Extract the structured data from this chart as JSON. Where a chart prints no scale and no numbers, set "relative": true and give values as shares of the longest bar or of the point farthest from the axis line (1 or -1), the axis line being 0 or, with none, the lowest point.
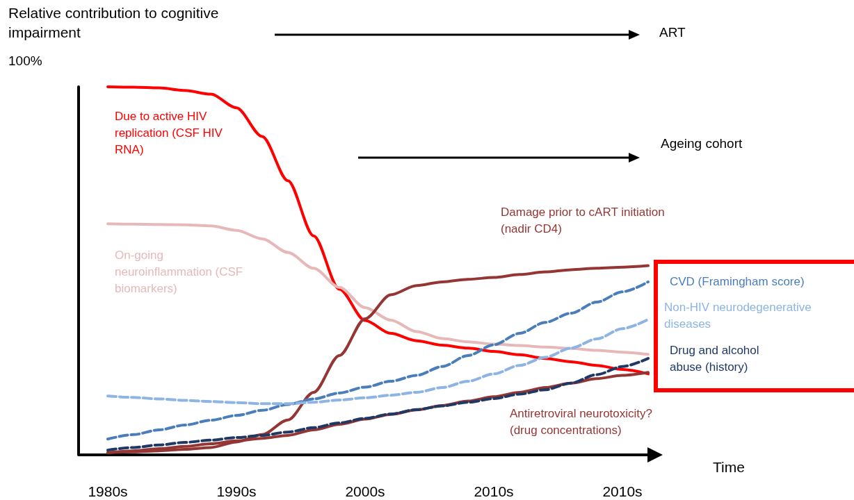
{
  "chart_data": {
    "type": "line",
    "relative": true,
    "ylabel": "Relative contribution to cognitive impairment",
    "xlabel": "Time",
    "legend": false,
    "grid": false,
    "marker": "none",
    "categories": [
      "1980s",
      null,
      null,
      null,
      null,
      "1990s",
      null,
      null,
      null,
      null,
      "2000s",
      null,
      null,
      null,
      null,
      "2010s",
      null,
      null,
      null,
      null,
      "2010s",
      null
    ],
    "annotations": [
      "100%",
      "ART",
      "Ageing cohort"
    ],
    "series": [
      {
        "name": "Due to active HIV replication (CSF HIV RNA)",
        "color": "#ff0000",
        "line_style": "solid",
        "values": [
          1,
          0.999,
          0.997,
          0.99,
          0.98,
          0.943,
          0.865,
          0.745,
          0.595,
          0.45,
          0.365,
          0.33,
          0.31,
          0.298,
          0.29,
          0.281,
          0.272,
          0.262,
          0.253,
          0.243,
          0.232,
          0.22
        ]
      },
      {
        "name": "On-going neuroinflammation (CSF biomarkers)",
        "color": "#e6b9b8",
        "line_style": "solid",
        "values": [
          0.628,
          0.627,
          0.626,
          0.625,
          0.622,
          0.61,
          0.587,
          0.55,
          0.507,
          0.455,
          0.4,
          0.366,
          0.335,
          0.316,
          0.307,
          0.301,
          0.297,
          0.293,
          0.289,
          0.284,
          0.279,
          0.273
        ]
      },
      {
        "name": "Damage prior to cART initiation (nadir CD4)",
        "color": "#943634",
        "line_style": "solid",
        "values": [
          0.006,
          0.008,
          0.011,
          0.015,
          0.02,
          0.035,
          0.055,
          0.095,
          0.17,
          0.27,
          0.37,
          0.435,
          0.46,
          0.47,
          0.477,
          0.482,
          0.49,
          0.497,
          0.503,
          0.507,
          0.51,
          0.514
        ]
      },
      {
        "name": "Antiretroviral neurotoxicity? (drug concentrations)",
        "color": "#943634",
        "line_style": "solid",
        "values": [
          0.006,
          0.011,
          0.017,
          0.023,
          0.03,
          0.038,
          0.045,
          0.053,
          0.068,
          0.083,
          0.097,
          0.11,
          0.122,
          0.134,
          0.146,
          0.158,
          0.17,
          0.183,
          0.195,
          0.207,
          0.216,
          0.224
        ]
      },
      {
        "name": "CVD (Framingham score)",
        "color": "#4a7ebb",
        "line_style": "dashed",
        "values": [
          0.043,
          0.055,
          0.068,
          0.081,
          0.094,
          0.107,
          0.121,
          0.137,
          0.152,
          0.168,
          0.184,
          0.2,
          0.216,
          0.24,
          0.27,
          0.299,
          0.33,
          0.36,
          0.385,
          0.415,
          0.443,
          0.47
        ]
      },
      {
        "name": "Non-HIV neurodegenerative diseases",
        "color": "#8db4e2",
        "line_style": "dashed",
        "values": [
          0.16,
          0.156,
          0.152,
          0.148,
          0.145,
          0.142,
          0.139,
          0.139,
          0.143,
          0.149,
          0.155,
          0.162,
          0.17,
          0.183,
          0.2,
          0.22,
          0.243,
          0.265,
          0.29,
          0.315,
          0.343,
          0.368
        ]
      },
      {
        "name": "Drug and alcohol abuse (history)",
        "color": "#1f3864",
        "line_style": "dashed",
        "values": [
          0.013,
          0.02,
          0.027,
          0.034,
          0.04,
          0.047,
          0.053,
          0.062,
          0.074,
          0.087,
          0.099,
          0.111,
          0.123,
          0.133,
          0.143,
          0.153,
          0.165,
          0.177,
          0.195,
          0.218,
          0.24,
          0.262
        ]
      }
    ]
  }
}
